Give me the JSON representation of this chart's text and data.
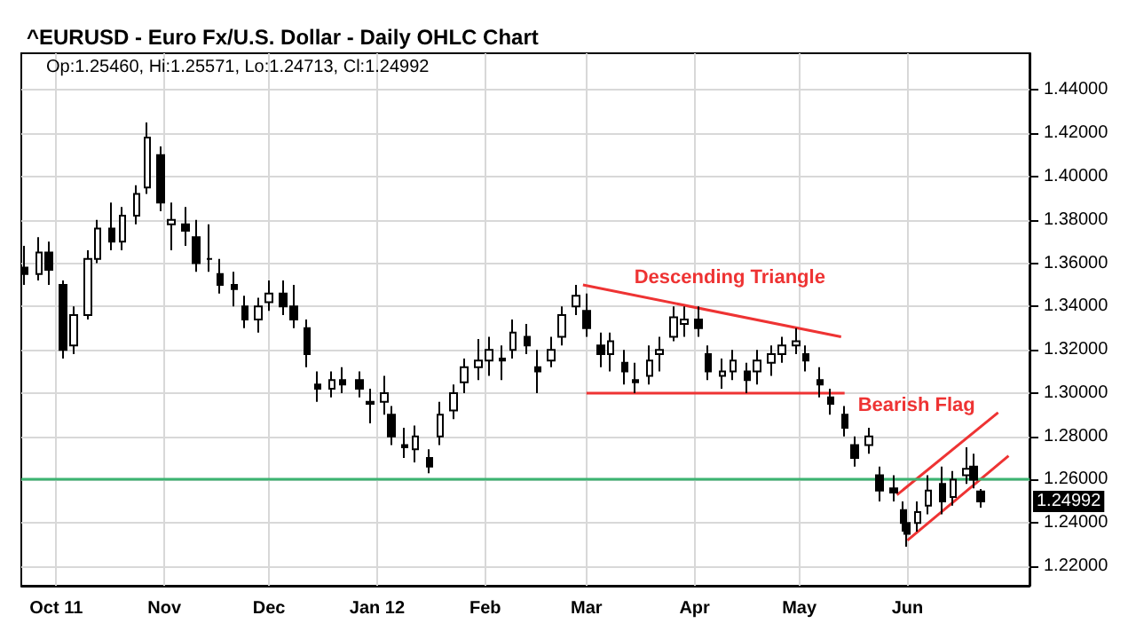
{
  "chart_data": {
    "type": "candlestick",
    "title": "^EURUSD - Euro Fx/U.S. Dollar - Daily OHLC Chart",
    "annotations": [
      "Op:1.25460, Hi:1.25571, Lo:1.24713, Cl:1.24992",
      "Descending Triangle",
      "Bearish Flag",
      "1.24992"
    ],
    "x": [
      "2011-09-22",
      "2011-09-26",
      "2011-09-29",
      "2011-10-03",
      "2011-10-06",
      "2011-10-10",
      "2011-10-13",
      "2011-10-17",
      "2011-10-20",
      "2011-10-24",
      "2011-10-27",
      "2011-10-31",
      "2011-11-03",
      "2011-11-07",
      "2011-11-10",
      "2011-11-14",
      "2011-11-17",
      "2011-11-21",
      "2011-11-24",
      "2011-11-28",
      "2011-12-01",
      "2011-12-05",
      "2011-12-08",
      "2011-12-12",
      "2011-12-15",
      "2011-12-19",
      "2011-12-22",
      "2011-12-27",
      "2011-12-30",
      "2012-01-03",
      "2012-01-05",
      "2012-01-09",
      "2012-01-12",
      "2012-01-16",
      "2012-01-19",
      "2012-01-23",
      "2012-01-26",
      "2012-01-30",
      "2012-02-02",
      "2012-02-06",
      "2012-02-09",
      "2012-02-13",
      "2012-02-16",
      "2012-02-20",
      "2012-02-23",
      "2012-02-27",
      "2012-03-01",
      "2012-03-05",
      "2012-03-08",
      "2012-03-12",
      "2012-03-15",
      "2012-03-19",
      "2012-03-22",
      "2012-03-26",
      "2012-03-29",
      "2012-04-02",
      "2012-04-05",
      "2012-04-09",
      "2012-04-12",
      "2012-04-16",
      "2012-04-19",
      "2012-04-23",
      "2012-04-26",
      "2012-04-30",
      "2012-05-03",
      "2012-05-07",
      "2012-05-10",
      "2012-05-14",
      "2012-05-17",
      "2012-05-21",
      "2012-05-24",
      "2012-05-28",
      "2012-05-31",
      "2012-06-01",
      "2012-06-04",
      "2012-06-07",
      "2012-06-11",
      "2012-06-14",
      "2012-06-18",
      "2012-06-20",
      "2012-06-22"
    ],
    "ohlc": [
      [
        1.358,
        1.368,
        1.35,
        1.355
      ],
      [
        1.355,
        1.372,
        1.352,
        1.365
      ],
      [
        1.365,
        1.37,
        1.35,
        1.357
      ],
      [
        1.35,
        1.352,
        1.316,
        1.32
      ],
      [
        1.322,
        1.34,
        1.318,
        1.336
      ],
      [
        1.336,
        1.366,
        1.334,
        1.362
      ],
      [
        1.362,
        1.38,
        1.36,
        1.376
      ],
      [
        1.376,
        1.388,
        1.366,
        1.37
      ],
      [
        1.37,
        1.386,
        1.366,
        1.382
      ],
      [
        1.382,
        1.396,
        1.378,
        1.392
      ],
      [
        1.395,
        1.425,
        1.392,
        1.418
      ],
      [
        1.41,
        1.414,
        1.384,
        1.388
      ],
      [
        1.378,
        1.388,
        1.366,
        1.38
      ],
      [
        1.378,
        1.386,
        1.368,
        1.375
      ],
      [
        1.372,
        1.38,
        1.356,
        1.36
      ],
      [
        1.362,
        1.378,
        1.356,
        1.362
      ],
      [
        1.355,
        1.362,
        1.346,
        1.35
      ],
      [
        1.35,
        1.356,
        1.34,
        1.348
      ],
      [
        1.34,
        1.345,
        1.33,
        1.334
      ],
      [
        1.334,
        1.344,
        1.328,
        1.34
      ],
      [
        1.342,
        1.352,
        1.338,
        1.346
      ],
      [
        1.346,
        1.352,
        1.336,
        1.34
      ],
      [
        1.34,
        1.35,
        1.33,
        1.334
      ],
      [
        1.33,
        1.334,
        1.312,
        1.318
      ],
      [
        1.304,
        1.31,
        1.296,
        1.302
      ],
      [
        1.302,
        1.31,
        1.298,
        1.306
      ],
      [
        1.306,
        1.312,
        1.3,
        1.304
      ],
      [
        1.306,
        1.31,
        1.298,
        1.302
      ],
      [
        1.296,
        1.302,
        1.286,
        1.295
      ],
      [
        1.296,
        1.308,
        1.29,
        1.3
      ],
      [
        1.29,
        1.294,
        1.276,
        1.28
      ],
      [
        1.276,
        1.284,
        1.27,
        1.275
      ],
      [
        1.274,
        1.285,
        1.268,
        1.28
      ],
      [
        1.27,
        1.274,
        1.263,
        1.266
      ],
      [
        1.28,
        1.296,
        1.276,
        1.29
      ],
      [
        1.292,
        1.304,
        1.288,
        1.3
      ],
      [
        1.305,
        1.316,
        1.3,
        1.312
      ],
      [
        1.312,
        1.325,
        1.306,
        1.315
      ],
      [
        1.315,
        1.326,
        1.308,
        1.32
      ],
      [
        1.316,
        1.322,
        1.306,
        1.315
      ],
      [
        1.32,
        1.334,
        1.316,
        1.328
      ],
      [
        1.326,
        1.332,
        1.318,
        1.322
      ],
      [
        1.312,
        1.32,
        1.3,
        1.31
      ],
      [
        1.315,
        1.326,
        1.312,
        1.32
      ],
      [
        1.326,
        1.34,
        1.322,
        1.336
      ],
      [
        1.34,
        1.35,
        1.336,
        1.345
      ],
      [
        1.338,
        1.346,
        1.326,
        1.33
      ],
      [
        1.322,
        1.328,
        1.312,
        1.318
      ],
      [
        1.318,
        1.328,
        1.31,
        1.324
      ],
      [
        1.314,
        1.32,
        1.304,
        1.31
      ],
      [
        1.306,
        1.314,
        1.3,
        1.305
      ],
      [
        1.308,
        1.322,
        1.304,
        1.315
      ],
      [
        1.318,
        1.326,
        1.31,
        1.32
      ],
      [
        1.326,
        1.34,
        1.324,
        1.335
      ],
      [
        1.332,
        1.34,
        1.326,
        1.334
      ],
      [
        1.334,
        1.34,
        1.326,
        1.33
      ],
      [
        1.318,
        1.322,
        1.306,
        1.31
      ],
      [
        1.308,
        1.316,
        1.302,
        1.31
      ],
      [
        1.31,
        1.32,
        1.306,
        1.315
      ],
      [
        1.31,
        1.314,
        1.3,
        1.306
      ],
      [
        1.31,
        1.32,
        1.304,
        1.315
      ],
      [
        1.314,
        1.322,
        1.308,
        1.318
      ],
      [
        1.318,
        1.326,
        1.314,
        1.322
      ],
      [
        1.322,
        1.33,
        1.318,
        1.324
      ],
      [
        1.318,
        1.322,
        1.31,
        1.315
      ],
      [
        1.306,
        1.312,
        1.298,
        1.304
      ],
      [
        1.298,
        1.302,
        1.29,
        1.295
      ],
      [
        1.29,
        1.294,
        1.28,
        1.284
      ],
      [
        1.276,
        1.28,
        1.266,
        1.27
      ],
      [
        1.276,
        1.284,
        1.272,
        1.28
      ],
      [
        1.262,
        1.266,
        1.25,
        1.255
      ],
      [
        1.256,
        1.262,
        1.25,
        1.254
      ],
      [
        1.246,
        1.25,
        1.236,
        1.24
      ],
      [
        1.24,
        1.244,
        1.229,
        1.235
      ],
      [
        1.24,
        1.25,
        1.236,
        1.245
      ],
      [
        1.248,
        1.262,
        1.244,
        1.255
      ],
      [
        1.258,
        1.266,
        1.244,
        1.25
      ],
      [
        1.252,
        1.264,
        1.248,
        1.26
      ],
      [
        1.262,
        1.275,
        1.258,
        1.265
      ],
      [
        1.266,
        1.272,
        1.256,
        1.26
      ],
      [
        1.2546,
        1.25571,
        1.24713,
        1.24992
      ]
    ],
    "color": "#000000",
    "series": [
      {
        "type": "line",
        "color": "#ee3333",
        "x": [
          "2012-02-29",
          "2012-05-13"
        ],
        "values": [
          1.35,
          1.326
        ]
      },
      {
        "type": "line",
        "color": "#ee3333",
        "x": [
          "2012-03-01",
          "2012-05-14"
        ],
        "values": [
          1.3,
          1.3
        ]
      },
      {
        "type": "line",
        "color": "#ee3333",
        "x": [
          "2012-05-29",
          "2012-06-27"
        ],
        "values": [
          1.253,
          1.291
        ]
      },
      {
        "type": "line",
        "color": "#ee3333",
        "x": [
          "2012-06-01",
          "2012-06-30"
        ],
        "values": [
          1.232,
          1.271
        ]
      }
    ],
    "ref_lines": [
      {
        "axis": "y",
        "value": 1.26,
        "color": "#3cb371"
      }
    ],
    "xlim": [
      "2011-09-21",
      "2012-07-06"
    ],
    "xticks": [
      {
        "value": "2011-10-01",
        "label": "Oct 11"
      },
      {
        "value": "2011-11-01",
        "label": "Nov"
      },
      {
        "value": "2011-12-01",
        "label": "Dec"
      },
      {
        "value": "2012-01-01",
        "label": "Jan 12"
      },
      {
        "value": "2012-02-01",
        "label": "Feb"
      },
      {
        "value": "2012-03-01",
        "label": "Mar"
      },
      {
        "value": "2012-04-01",
        "label": "Apr"
      },
      {
        "value": "2012-05-01",
        "label": "May"
      },
      {
        "value": "2012-06-01",
        "label": "Jun"
      }
    ],
    "ylim": [
      1.211,
      1.457
    ],
    "yticks": [
      {
        "value": 1.22,
        "label": "1.22000"
      },
      {
        "value": 1.24,
        "label": "1.24000"
      },
      {
        "value": 1.26,
        "label": "1.26000"
      },
      {
        "value": 1.28,
        "label": "1.28000"
      },
      {
        "value": 1.3,
        "label": "1.30000"
      },
      {
        "value": 1.32,
        "label": "1.32000"
      },
      {
        "value": 1.34,
        "label": "1.34000"
      },
      {
        "value": 1.36,
        "label": "1.36000"
      },
      {
        "value": 1.38,
        "label": "1.38000"
      },
      {
        "value": 1.4,
        "label": "1.40000"
      },
      {
        "value": 1.42,
        "label": "1.42000"
      },
      {
        "value": 1.44,
        "label": "1.44000"
      }
    ],
    "grid": true,
    "marker": "none",
    "line_style": "solid"
  }
}
